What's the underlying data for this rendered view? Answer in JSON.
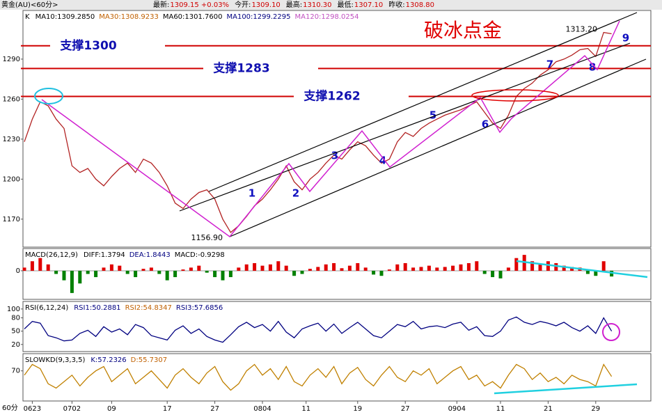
{
  "header": {
    "instrument": "黄金(AU)<60分>",
    "quote": [
      {
        "label": "最新:",
        "value": "1309.15 +0.03%"
      },
      {
        "label": "今开:",
        "value": "1309.10"
      },
      {
        "label": "最高:",
        "value": "1310.30"
      },
      {
        "label": "最低:",
        "value": "1307.10"
      },
      {
        "label": "昨收:",
        "value": "1308.80"
      }
    ],
    "period": "60分"
  },
  "chart_data": [
    {
      "type": "line",
      "title": "破冰点金",
      "legend_prefix": "K",
      "indicators": [
        {
          "text": "MA10:1309.2850",
          "color": "#000000"
        },
        {
          "text": "MA30:1308.9233",
          "color": "#c06000"
        },
        {
          "text": "MA60:1301.7600",
          "color": "#000000"
        },
        {
          "text": "MA100:1299.2295",
          "color": "#000080"
        },
        {
          "text": "MA120:1298.0254",
          "color": "#c050c0"
        }
      ],
      "color": "#b22222",
      "values": [
        1228,
        1245,
        1258,
        1255,
        1245,
        1238,
        1210,
        1205,
        1208,
        1200,
        1195,
        1202,
        1208,
        1212,
        1205,
        1215,
        1212,
        1205,
        1195,
        1182,
        1178,
        1185,
        1190,
        1192,
        1185,
        1170,
        1160,
        1165,
        1172,
        1180,
        1185,
        1192,
        1200,
        1210,
        1198,
        1192,
        1200,
        1205,
        1212,
        1218,
        1215,
        1222,
        1228,
        1225,
        1218,
        1212,
        1215,
        1228,
        1235,
        1232,
        1238,
        1242,
        1245,
        1248,
        1250,
        1252,
        1255,
        1258,
        1250,
        1242,
        1238,
        1248,
        1262,
        1268,
        1272,
        1278,
        1282,
        1288,
        1290,
        1293,
        1297,
        1298,
        1292,
        1310,
        1309
      ],
      "xlim": [
        0,
        75
      ],
      "xticks": [
        {
          "value": 1,
          "label": "0623"
        },
        {
          "value": 6,
          "label": "0702"
        },
        {
          "value": 11,
          "label": "09"
        },
        {
          "value": 18,
          "label": "17"
        },
        {
          "value": 24,
          "label": "27"
        },
        {
          "value": 30,
          "label": "0804"
        },
        {
          "value": 35.5,
          "label": "11"
        },
        {
          "value": 42,
          "label": "19"
        },
        {
          "value": 48,
          "label": "27"
        },
        {
          "value": 54.5,
          "label": "0904"
        },
        {
          "value": 60,
          "label": "11"
        },
        {
          "value": 66,
          "label": "21"
        },
        {
          "value": 72,
          "label": "29"
        }
      ],
      "ylim": [
        1149,
        1326.5
      ],
      "yticks": [
        1170,
        1200,
        1230,
        1260,
        1290
      ],
      "support_lines": [
        {
          "value": 1300,
          "label": "支撑1300"
        },
        {
          "value": 1283,
          "label": "支撑1283"
        },
        {
          "value": 1262,
          "label": "支撑1262"
        }
      ],
      "extremes": [
        {
          "value": 1313.2,
          "label": "1313.20"
        },
        {
          "value": 1156.9,
          "label": "1156.90"
        }
      ],
      "waves": [
        "1",
        "2",
        "3",
        "4",
        "5",
        "6",
        "7",
        "8",
        "9"
      ]
    },
    {
      "type": "bar",
      "title": "MACD(26,12,9)",
      "indicators": [
        {
          "text": "DIFF:1.3794",
          "color": "#000000"
        },
        {
          "text": "DEA:1.8443",
          "color": "#000080"
        },
        {
          "text": "MACD:-0.9298",
          "color": "#000000"
        }
      ],
      "positive_color": "#e00000",
      "negative_color": "#008000",
      "values": [
        0.5,
        1.5,
        2,
        1,
        -0.5,
        -1.5,
        -3.5,
        -2,
        -0.5,
        -1,
        0.5,
        1,
        0.8,
        -0.5,
        -1,
        0.3,
        0.5,
        -0.5,
        -1.5,
        -1,
        0.2,
        0.5,
        0.8,
        -0.3,
        -1,
        -1.5,
        -1,
        0.5,
        1,
        1.2,
        0.8,
        1,
        1.5,
        0.8,
        -0.8,
        -0.5,
        0.3,
        0.6,
        1,
        1.2,
        0.4,
        0.8,
        1.2,
        0.5,
        -0.6,
        -0.8,
        0.2,
        1,
        1.2,
        0.5,
        0.6,
        0.8,
        0.5,
        0.6,
        0.8,
        1,
        1.2,
        1.5,
        -0.5,
        -1,
        -1.2,
        0.5,
        2,
        2.5,
        1.5,
        1,
        1.5,
        1.2,
        0.8,
        0.6,
        0.5,
        -0.5,
        -0.8,
        1.5,
        -0.9
      ],
      "ylim": [
        -4.5,
        3.5
      ],
      "yticks": [
        0
      ]
    },
    {
      "type": "line",
      "title": "RSI(6,12,24)",
      "indicators": [
        {
          "text": "RSI1:50.2881",
          "color": "#000080"
        },
        {
          "text": "RSI2:54.8347",
          "color": "#c06000"
        },
        {
          "text": "RSI3:57.6856",
          "color": "#000080"
        }
      ],
      "color": "#000080",
      "values": [
        55,
        72,
        68,
        40,
        35,
        28,
        30,
        45,
        52,
        38,
        60,
        48,
        55,
        42,
        65,
        58,
        40,
        35,
        30,
        52,
        62,
        45,
        55,
        38,
        30,
        25,
        42,
        60,
        70,
        58,
        65,
        50,
        72,
        48,
        35,
        55,
        62,
        68,
        50,
        66,
        45,
        58,
        70,
        55,
        40,
        35,
        50,
        65,
        60,
        72,
        55,
        60,
        62,
        58,
        66,
        70,
        52,
        60,
        40,
        38,
        50,
        75,
        82,
        70,
        65,
        72,
        68,
        62,
        70,
        58,
        50,
        62,
        45,
        80,
        50
      ],
      "ylim": [
        4,
        117
      ],
      "yticks": [
        20,
        50,
        80,
        100
      ]
    },
    {
      "type": "line",
      "title": "SLOWKD(9,3,3,5)",
      "indicators": [
        {
          "text": "K:57.2326",
          "color": "#000080"
        },
        {
          "text": "D:55.7307",
          "color": "#c06000"
        }
      ],
      "color": "#c08000",
      "values": [
        60,
        85,
        75,
        40,
        30,
        45,
        60,
        35,
        55,
        70,
        80,
        45,
        60,
        75,
        40,
        55,
        70,
        50,
        30,
        60,
        75,
        55,
        40,
        65,
        80,
        45,
        25,
        40,
        70,
        85,
        60,
        75,
        50,
        80,
        45,
        35,
        60,
        75,
        55,
        80,
        40,
        65,
        78,
        50,
        35,
        60,
        80,
        55,
        45,
        70,
        60,
        75,
        40,
        55,
        70,
        80,
        50,
        60,
        35,
        45,
        30,
        60,
        85,
        75,
        50,
        65,
        45,
        55,
        40,
        60,
        50,
        45,
        35,
        85,
        57
      ],
      "ylim": [
        0,
        110
      ],
      "yticks": [
        70
      ]
    }
  ]
}
